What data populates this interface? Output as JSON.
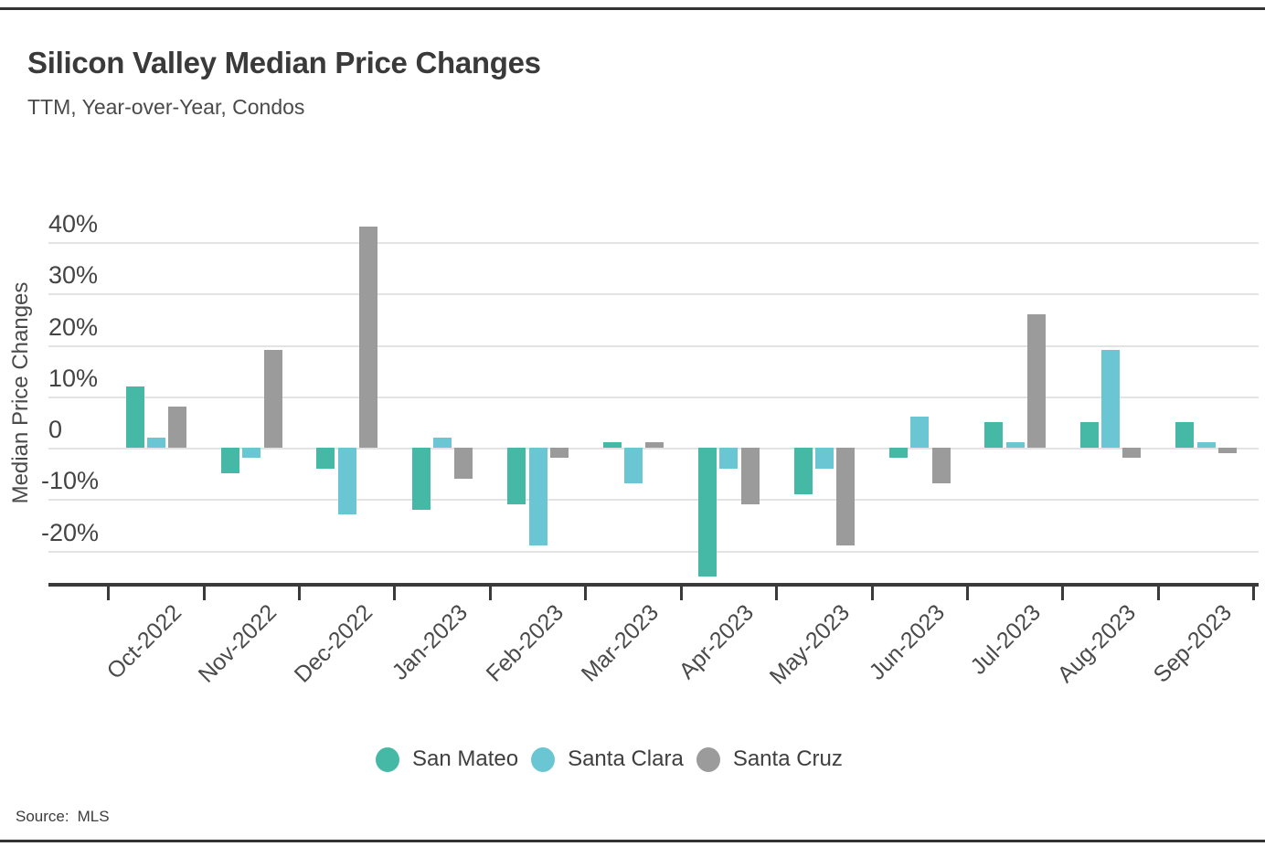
{
  "page": {
    "title": "Silicon Valley Median Price Changes",
    "subtitle": "TTM, Year-over-Year, Condos",
    "source_label": "Source:",
    "source_value": "MLS"
  },
  "colors": {
    "san_mateo": "#45B9A6",
    "santa_clara": "#6AC6D3",
    "santa_cruz": "#9B9B9B",
    "axis": "#3A3A3A",
    "grid": "#E3E3E3",
    "title_text": "#3A3A3A",
    "muted_text": "#4A4A4A"
  },
  "chart_data": {
    "type": "bar",
    "title": "Silicon Valley Median Price Changes",
    "subtitle": "TTM, Year-over-Year, Condos",
    "source": "Source: MLS",
    "xlabel": "",
    "ylabel": "Median Price Changes",
    "unit": "percent",
    "categories": [
      "Oct-2022",
      "Nov-2022",
      "Dec-2022",
      "Jan-2023",
      "Feb-2023",
      "Mar-2023",
      "Apr-2023",
      "May-2023",
      "Jun-2023",
      "Jul-2023",
      "Aug-2023",
      "Sep-2023"
    ],
    "series": [
      {
        "name": "San Mateo",
        "color": "#45B9A6",
        "values": [
          12,
          -5,
          -4,
          -12,
          -11,
          1,
          -25,
          -9,
          -2,
          5,
          5,
          5
        ]
      },
      {
        "name": "Santa Clara",
        "color": "#6AC6D3",
        "values": [
          2,
          -2,
          -13,
          2,
          -19,
          -7,
          -4,
          -4,
          6,
          1,
          19,
          1
        ]
      },
      {
        "name": "Santa Cruz",
        "color": "#9B9B9B",
        "values": [
          8,
          19,
          43,
          -6,
          -2,
          1,
          -11,
          -19,
          -7,
          26,
          -2,
          -1
        ]
      }
    ],
    "y_ticks": [
      {
        "label": "40%",
        "value": 40
      },
      {
        "label": "30%",
        "value": 30
      },
      {
        "label": "20%",
        "value": 20
      },
      {
        "label": "10%",
        "value": 10
      },
      {
        "label": "0",
        "value": 0
      },
      {
        "label": "-10%",
        "value": -10
      },
      {
        "label": "-20%",
        "value": -20
      }
    ],
    "ylim": [
      -26.7,
      46
    ],
    "grid": "horizontal",
    "legend_position": "bottom"
  }
}
